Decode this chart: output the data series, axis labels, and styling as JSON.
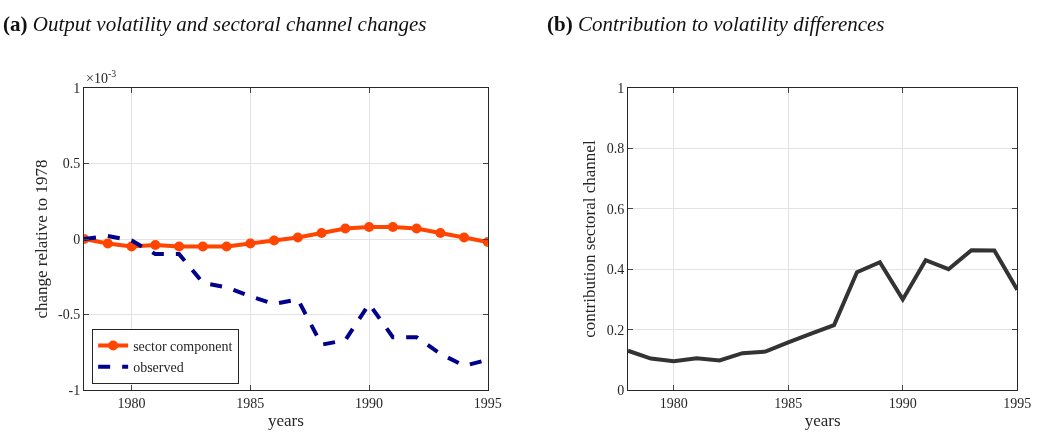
{
  "chart_data": [
    {
      "type": "line",
      "title": "(a) Output volatility and sectoral channel changes",
      "xlabel": "years",
      "ylabel": "change relative to 1978",
      "annotations": [
        "×10$^{-3}$"
      ],
      "x": [
        1978,
        1979,
        1980,
        1981,
        1982,
        1983,
        1984,
        1985,
        1986,
        1987,
        1988,
        1989,
        1990,
        1991,
        1992,
        1993,
        1994,
        1995
      ],
      "xlim": [
        1978,
        1995
      ],
      "xticks": [
        1980,
        1985,
        1990,
        1995
      ],
      "ylim": [
        -1,
        1
      ],
      "yticks": [
        -1,
        -0.5,
        0,
        0.5,
        1
      ],
      "grid": true,
      "legend": "bottom left",
      "series": [
        {
          "name": "sector component",
          "color": "#ff4500",
          "marker": "circle",
          "line_style": "solid",
          "values": [
            0,
            -0.03,
            -0.05,
            -0.04,
            -0.05,
            -0.05,
            -0.05,
            -0.03,
            -0.01,
            0.01,
            0.04,
            0.07,
            0.08,
            0.08,
            0.07,
            0.04,
            0.01,
            -0.02
          ]
        },
        {
          "name": "observed",
          "color": "#00008b",
          "marker": "none",
          "line_style": "dashed",
          "values": [
            0,
            0.02,
            -0.01,
            -0.1,
            -0.1,
            -0.29,
            -0.32,
            -0.38,
            -0.43,
            -0.4,
            -0.7,
            -0.67,
            -0.43,
            -0.65,
            -0.65,
            -0.76,
            -0.84,
            -0.8
          ]
        }
      ]
    },
    {
      "type": "line",
      "title": "(b) Contribution to volatility differences",
      "xlabel": "years",
      "ylabel": "contribution sectoral channel",
      "x": [
        1978,
        1979,
        1980,
        1981,
        1982,
        1983,
        1984,
        1985,
        1986,
        1987,
        1988,
        1989,
        1990,
        1991,
        1992,
        1993,
        1994,
        1995
      ],
      "xlim": [
        1978,
        1995
      ],
      "xticks": [
        1980,
        1985,
        1990,
        1995
      ],
      "ylim": [
        0,
        1
      ],
      "yticks": [
        0,
        0.2,
        0.4,
        0.6,
        0.8,
        1
      ],
      "grid": true,
      "legend": false,
      "series": [
        {
          "color": "#333333",
          "marker": "none",
          "line_style": "solid",
          "values": [
            0.13,
            0.104,
            0.095,
            0.105,
            0.098,
            0.122,
            0.127,
            0.158,
            0.187,
            0.215,
            0.39,
            0.423,
            0.3,
            0.43,
            0.4,
            0.463,
            0.462,
            0.332
          ]
        }
      ]
    }
  ]
}
